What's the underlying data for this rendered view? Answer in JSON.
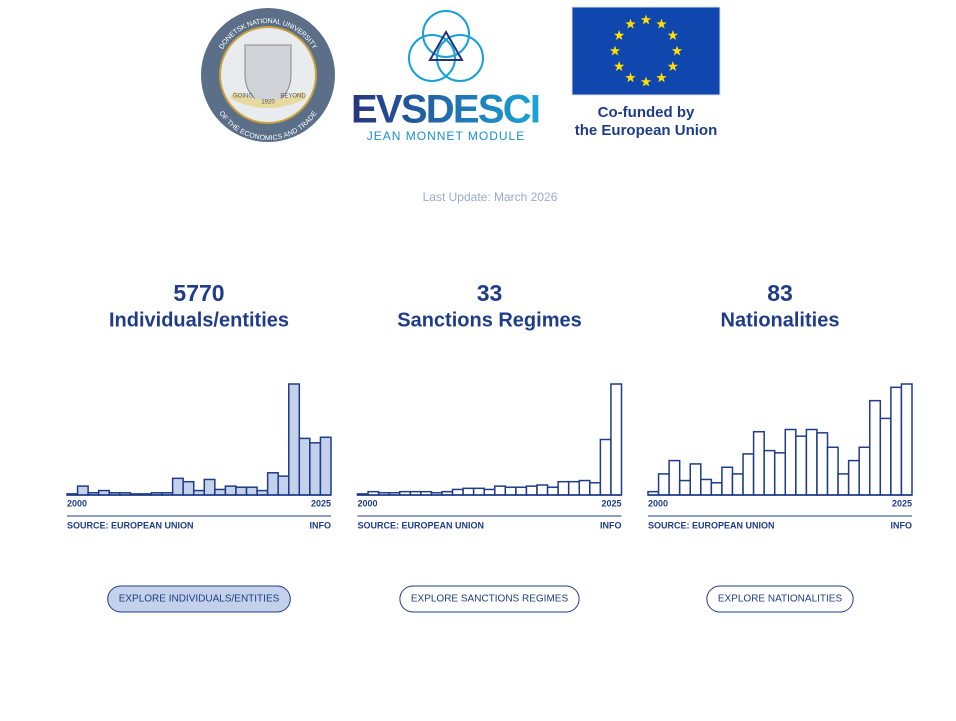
{
  "header": {
    "university_logo": {
      "ring_top": "DONETSK NATIONAL UNIVERSITY",
      "ring_bottom": "OF THE ECONOMICS AND TRADE",
      "motto_left": "GOING",
      "motto_right": "BEYOND",
      "year": "1920"
    },
    "module_logo": {
      "title": "EVSDESCI",
      "subtitle": "JEAN MONNET MODULE"
    },
    "eu_logo": {
      "caption_line1": "Co-funded by",
      "caption_line2": "the European Union"
    }
  },
  "last_update": "Last Update: March 2026",
  "chart_data": [
    {
      "type": "histogram",
      "title": "5770",
      "subtitle": "Individuals/entities",
      "bins": [
        2000,
        2001,
        2002,
        2003,
        2004,
        2005,
        2006,
        2007,
        2008,
        2009,
        2010,
        2011,
        2012,
        2013,
        2014,
        2015,
        2016,
        2017,
        2018,
        2019,
        2020,
        2021,
        2022,
        2023,
        2024,
        2025
      ],
      "values": [
        1,
        8,
        2,
        4,
        2,
        2,
        1,
        1,
        2,
        2,
        15,
        12,
        4,
        14,
        5,
        8,
        7,
        7,
        4,
        20,
        17,
        100,
        51,
        47,
        52
      ],
      "color": "#1f3c88",
      "fill": "#c3d1ea",
      "ylim": [
        0,
        100
      ],
      "xticks": [
        2000,
        2025
      ],
      "source": "SOURCE: EUROPEAN UNION",
      "info": "INFO",
      "button": "EXPLORE INDIVIDUALS/ENTITIES",
      "button_fill": "#c3d1ea"
    },
    {
      "type": "histogram",
      "title": "33",
      "subtitle": "Sanctions Regimes",
      "bins": [
        2000,
        2001,
        2002,
        2003,
        2004,
        2005,
        2006,
        2007,
        2008,
        2009,
        2010,
        2011,
        2012,
        2013,
        2014,
        2015,
        2016,
        2017,
        2018,
        2019,
        2020,
        2021,
        2022,
        2023,
        2024,
        2025
      ],
      "values": [
        1,
        3,
        2,
        2,
        3,
        3,
        3,
        2,
        3,
        5,
        6,
        6,
        5,
        8,
        7,
        7,
        8,
        9,
        7,
        12,
        12,
        13,
        11,
        50,
        100
      ],
      "color": "#1f3c88",
      "fill": "#ffffff",
      "ylim": [
        0,
        100
      ],
      "xticks": [
        2000,
        2025
      ],
      "source": "SOURCE: EUROPEAN UNION",
      "info": "INFO",
      "button": "EXPLORE SANCTIONS REGIMES",
      "button_fill": "#ffffff"
    },
    {
      "type": "histogram",
      "title": "83",
      "subtitle": "Nationalities",
      "bins": [
        2000,
        2001,
        2002,
        2003,
        2004,
        2005,
        2006,
        2007,
        2008,
        2009,
        2010,
        2011,
        2012,
        2013,
        2014,
        2015,
        2016,
        2017,
        2018,
        2019,
        2020,
        2021,
        2022,
        2023,
        2024,
        2025
      ],
      "values": [
        3,
        19,
        31,
        13,
        28,
        14,
        11,
        25,
        19,
        37,
        57,
        40,
        38,
        59,
        53,
        59,
        56,
        43,
        19,
        31,
        43,
        85,
        69,
        97,
        100
      ],
      "color": "#1f3c88",
      "fill": "#ffffff",
      "ylim": [
        0,
        100
      ],
      "xticks": [
        2000,
        2025
      ],
      "source": "SOURCE: EUROPEAN UNION",
      "info": "INFO",
      "button": "EXPLORE NATIONALITIES",
      "button_fill": "#ffffff"
    }
  ]
}
